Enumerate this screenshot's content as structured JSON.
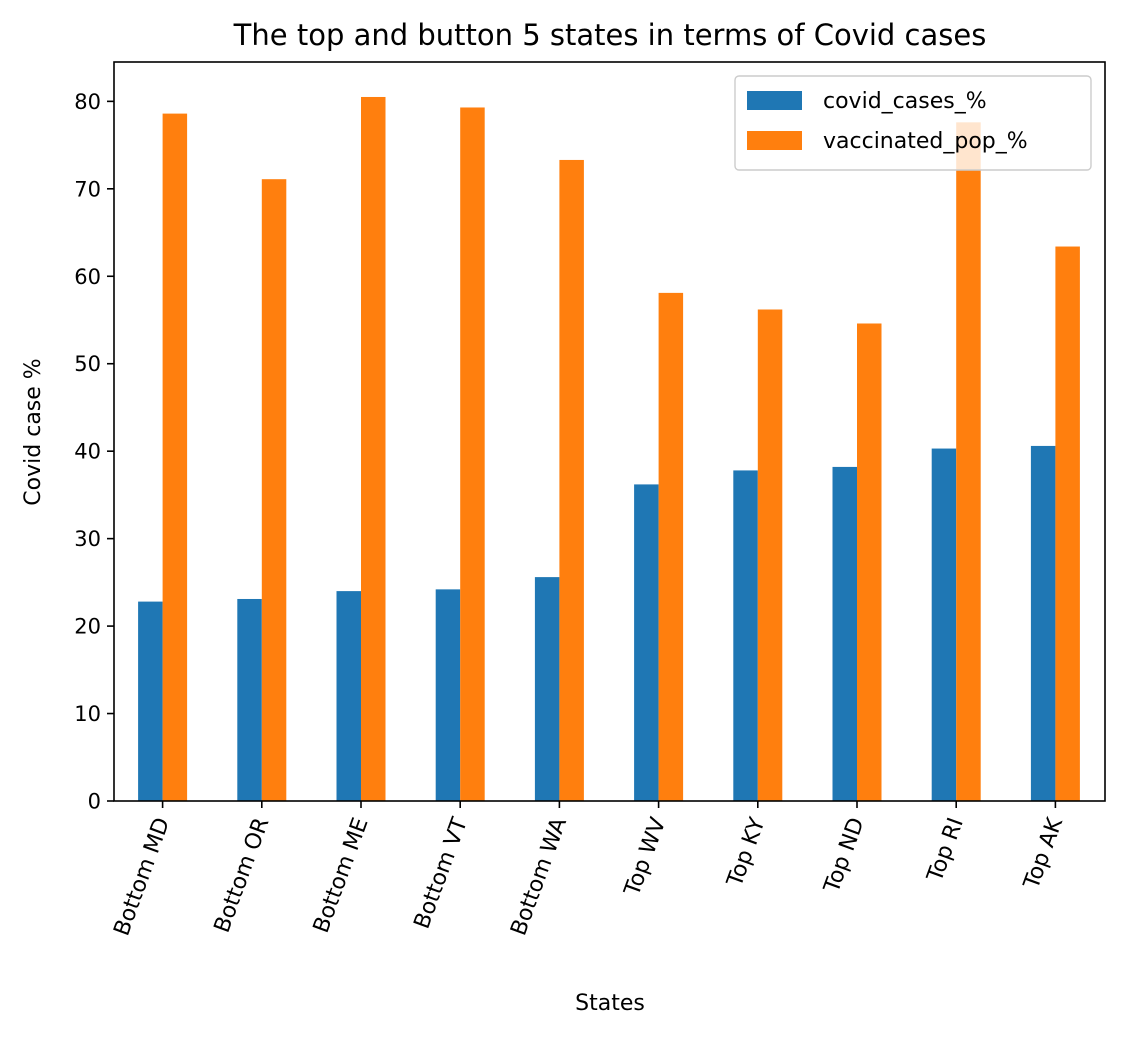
{
  "chart_data": {
    "type": "bar",
    "title": "The top and button 5 states in terms of Covid cases",
    "xlabel": "States",
    "ylabel": "Covid case %",
    "categories": [
      "Bottom MD",
      "Bottom OR",
      "Bottom ME",
      "Bottom VT",
      "Bottom WA",
      "Top WV",
      "Top KY",
      "Top ND",
      "Top RI",
      "Top AK"
    ],
    "series": [
      {
        "name": "covid_cases_%",
        "color": "#1f77b4",
        "values": [
          22.8,
          23.1,
          24.0,
          24.2,
          25.6,
          36.2,
          37.8,
          38.2,
          40.3,
          40.6
        ]
      },
      {
        "name": "vaccinated_pop_%",
        "color": "#ff7f0e",
        "values": [
          78.6,
          71.1,
          80.5,
          79.3,
          73.3,
          58.1,
          56.2,
          54.6,
          77.6,
          63.4
        ]
      }
    ],
    "ylim": [
      0,
      84.5
    ],
    "yticks": [
      "0",
      "10",
      "20",
      "30",
      "40",
      "50",
      "60",
      "70",
      "80"
    ],
    "xtick_rotation_deg": 70,
    "grid": false,
    "legend_position": "top-right"
  }
}
